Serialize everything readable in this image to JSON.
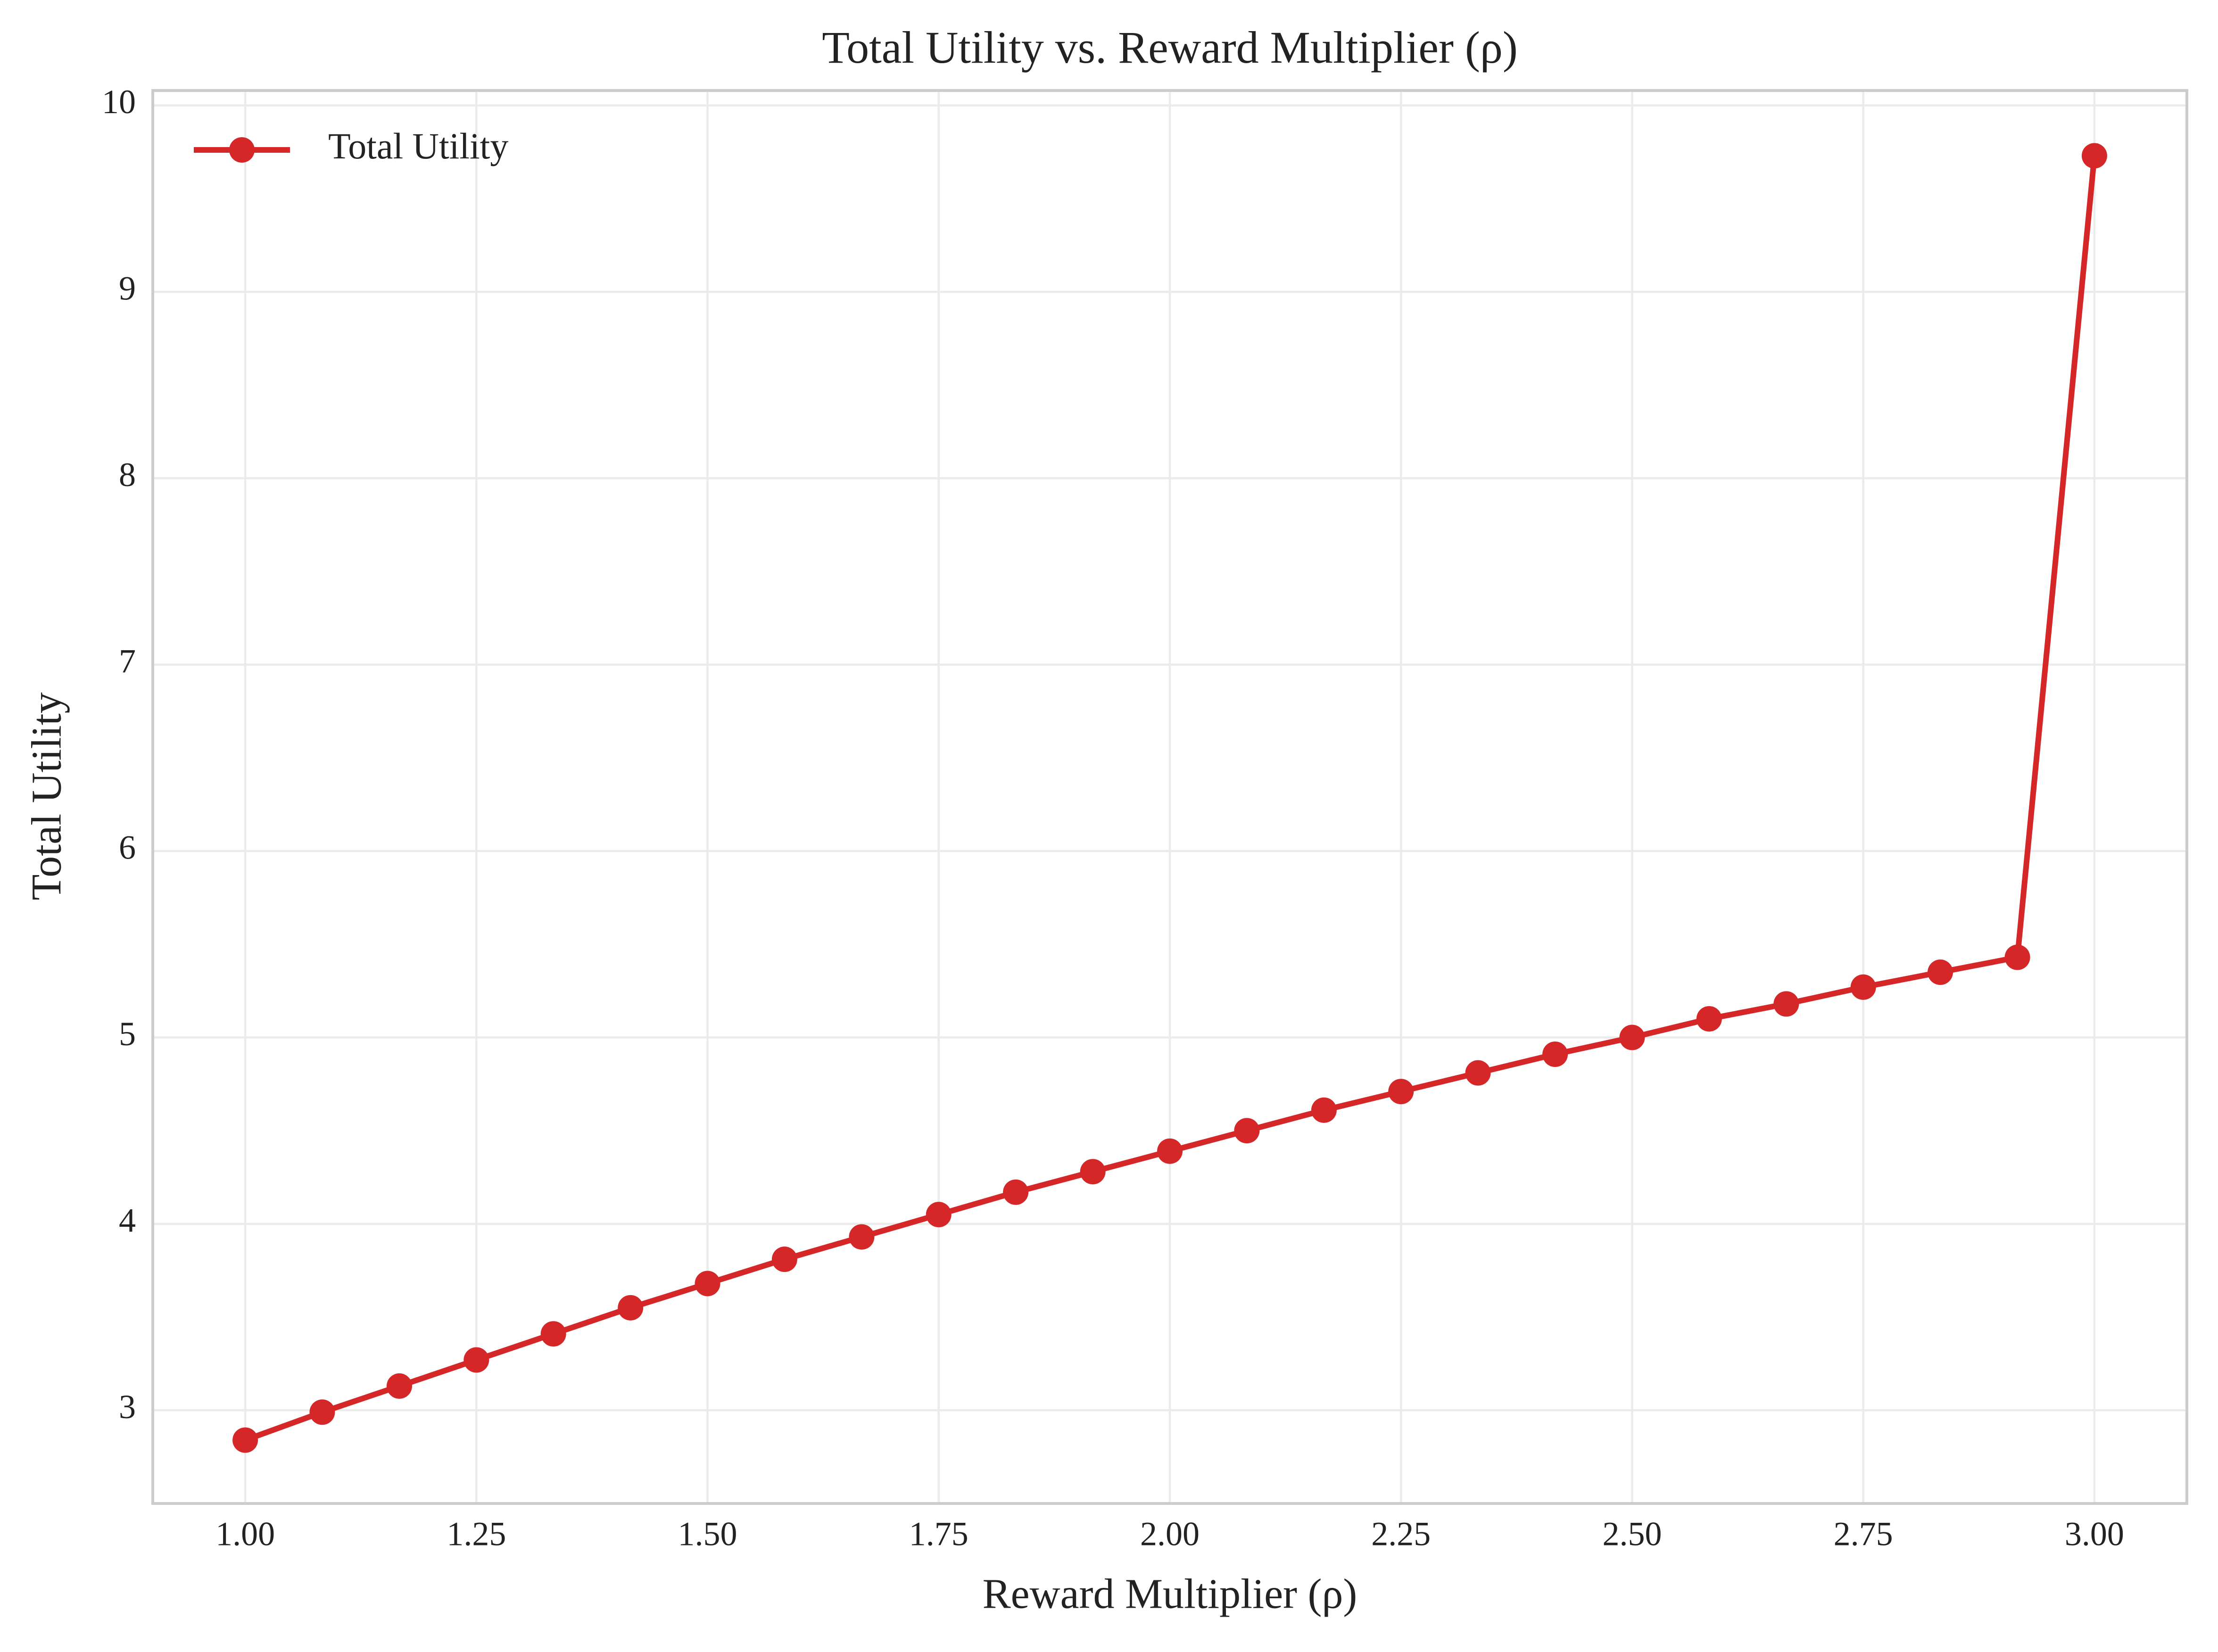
{
  "chart_data": {
    "type": "line",
    "title": "Total Utility vs. Reward Multiplier (ρ)",
    "x_label": "Reward Multiplier (ρ)",
    "y_label": "Total Utility",
    "x": [
      1,
      1.0833,
      1.1667,
      1.25,
      1.3333,
      1.4167,
      1.5,
      1.5833,
      1.6667,
      1.75,
      1.8333,
      1.9167,
      2,
      2.0833,
      2.1667,
      2.25,
      2.3333,
      2.4167,
      2.5,
      2.5833,
      2.6667,
      2.75,
      2.8333,
      2.9167,
      3
    ],
    "series": [
      {
        "name": "Total Utility",
        "color": "#d62728",
        "values": [
          2.84,
          2.99,
          3.13,
          3.27,
          3.41,
          3.55,
          3.68,
          3.81,
          3.93,
          4.05,
          4.17,
          4.28,
          4.39,
          4.5,
          4.61,
          4.71,
          4.81,
          4.91,
          5.0,
          5.1,
          5.18,
          5.27,
          5.35,
          5.43,
          9.73
        ]
      }
    ],
    "xlim": [
      0.9,
      3.1
    ],
    "ylim": [
      2.5,
      10.08
    ],
    "xticks": [
      {
        "value": 1,
        "label": "1.00"
      },
      {
        "value": 1.25,
        "label": "1.25"
      },
      {
        "value": 1.5,
        "label": "1.50"
      },
      {
        "value": 1.75,
        "label": "1.75"
      },
      {
        "value": 2,
        "label": "2.00"
      },
      {
        "value": 2.25,
        "label": "2.25"
      },
      {
        "value": 2.5,
        "label": "2.50"
      },
      {
        "value": 2.75,
        "label": "2.75"
      },
      {
        "value": 3,
        "label": "3.00"
      }
    ],
    "yticks": [
      3,
      4,
      5,
      6,
      7,
      8,
      9,
      10
    ],
    "grid": true,
    "legend": "upper-left"
  }
}
